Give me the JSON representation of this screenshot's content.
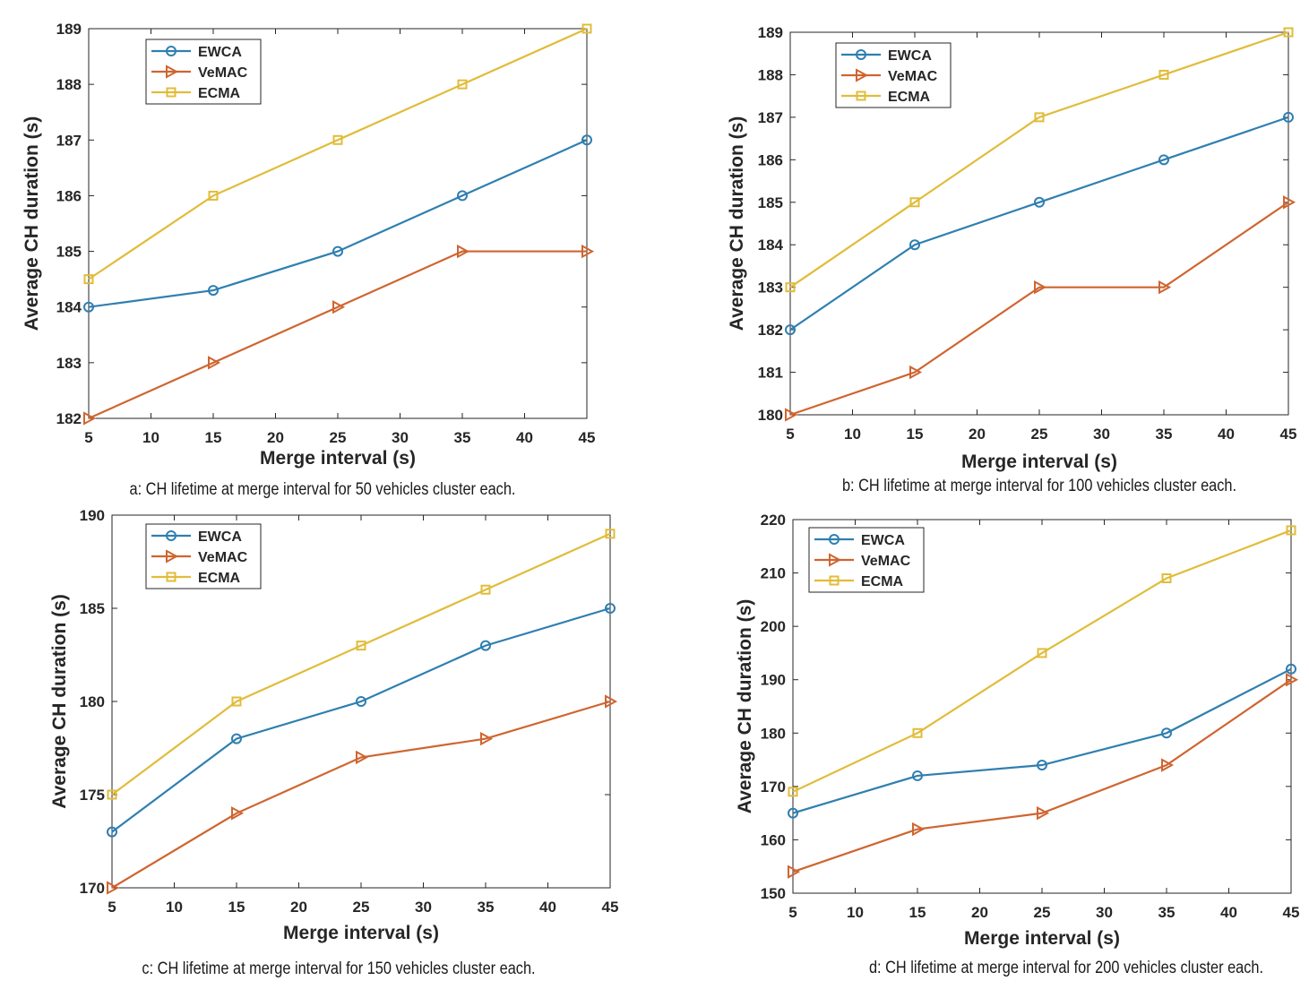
{
  "colors": {
    "EWCA": "#2f7fb0",
    "VeMAC": "#cf6530",
    "ECMA": "#e1bc3a",
    "axis": "#262626"
  },
  "chart_data": [
    {
      "type": "line",
      "title": "",
      "caption": "a: CH lifetime at merge interval for 50 vehicles cluster each.",
      "xlabel": "Merge interval (s)",
      "ylabel": "Average CH duration (s)",
      "xlim": [
        5,
        45
      ],
      "ylim": [
        182,
        189
      ],
      "xticks": [
        5,
        10,
        15,
        20,
        25,
        30,
        35,
        40,
        45
      ],
      "yticks": [
        182,
        183,
        184,
        185,
        186,
        187,
        188,
        189
      ],
      "legend_position": "top-left",
      "x": [
        5,
        15,
        25,
        35,
        45
      ],
      "series": [
        {
          "name": "EWCA",
          "marker": "circle",
          "values": [
            184,
            184.3,
            185,
            186,
            187
          ]
        },
        {
          "name": "VeMAC",
          "marker": "triangle-right",
          "values": [
            182,
            183,
            184,
            185,
            185
          ]
        },
        {
          "name": "ECMA",
          "marker": "square",
          "values": [
            184.5,
            186,
            187,
            188,
            189
          ]
        }
      ]
    },
    {
      "type": "line",
      "title": "",
      "caption": "b: CH lifetime at merge interval for 100 vehicles cluster each.",
      "xlabel": "Merge interval (s)",
      "ylabel": "Average CH duration (s)",
      "xlim": [
        5,
        45
      ],
      "ylim": [
        180,
        189
      ],
      "xticks": [
        5,
        10,
        15,
        20,
        25,
        30,
        35,
        40,
        45
      ],
      "yticks": [
        180,
        181,
        182,
        183,
        184,
        185,
        186,
        187,
        188,
        189
      ],
      "legend_position": "top-left",
      "x": [
        5,
        15,
        25,
        35,
        45
      ],
      "series": [
        {
          "name": "EWCA",
          "marker": "circle",
          "values": [
            182,
            184,
            185,
            186,
            187
          ]
        },
        {
          "name": "VeMAC",
          "marker": "triangle-right",
          "values": [
            180,
            181,
            183,
            183,
            185
          ]
        },
        {
          "name": "ECMA",
          "marker": "square",
          "values": [
            183,
            185,
            187,
            188,
            189
          ]
        }
      ]
    },
    {
      "type": "line",
      "title": "",
      "caption": "c: CH lifetime at merge interval for 150 vehicles cluster each.",
      "xlabel": "Merge interval (s)",
      "ylabel": "Average CH duration (s)",
      "xlim": [
        5,
        45
      ],
      "ylim": [
        170,
        190
      ],
      "xticks": [
        5,
        10,
        15,
        20,
        25,
        30,
        35,
        40,
        45
      ],
      "yticks": [
        170,
        175,
        180,
        185,
        190
      ],
      "legend_position": "top-left",
      "x": [
        5,
        15,
        25,
        35,
        45
      ],
      "series": [
        {
          "name": "EWCA",
          "marker": "circle",
          "values": [
            173,
            178,
            180,
            183,
            185
          ]
        },
        {
          "name": "VeMAC",
          "marker": "triangle-right",
          "values": [
            170,
            174,
            177,
            178,
            180
          ]
        },
        {
          "name": "ECMA",
          "marker": "square",
          "values": [
            175,
            180,
            183,
            186,
            189
          ]
        }
      ]
    },
    {
      "type": "line",
      "title": "",
      "caption": "d: CH lifetime at merge interval for 200 vehicles cluster each.",
      "xlabel": "Merge interval (s)",
      "ylabel": "Average CH duration (s)",
      "xlim": [
        5,
        45
      ],
      "ylim": [
        150,
        220
      ],
      "xticks": [
        5,
        10,
        15,
        20,
        25,
        30,
        35,
        40,
        45
      ],
      "yticks": [
        150,
        160,
        170,
        180,
        190,
        200,
        210,
        220
      ],
      "legend_position": "top-left",
      "x": [
        5,
        15,
        25,
        35,
        45
      ],
      "series": [
        {
          "name": "EWCA",
          "marker": "circle",
          "values": [
            165,
            172,
            174,
            180,
            192
          ]
        },
        {
          "name": "VeMAC",
          "marker": "triangle-right",
          "values": [
            154,
            162,
            165,
            174,
            190
          ]
        },
        {
          "name": "ECMA",
          "marker": "square",
          "values": [
            169,
            180,
            195,
            209,
            218
          ]
        }
      ]
    }
  ]
}
